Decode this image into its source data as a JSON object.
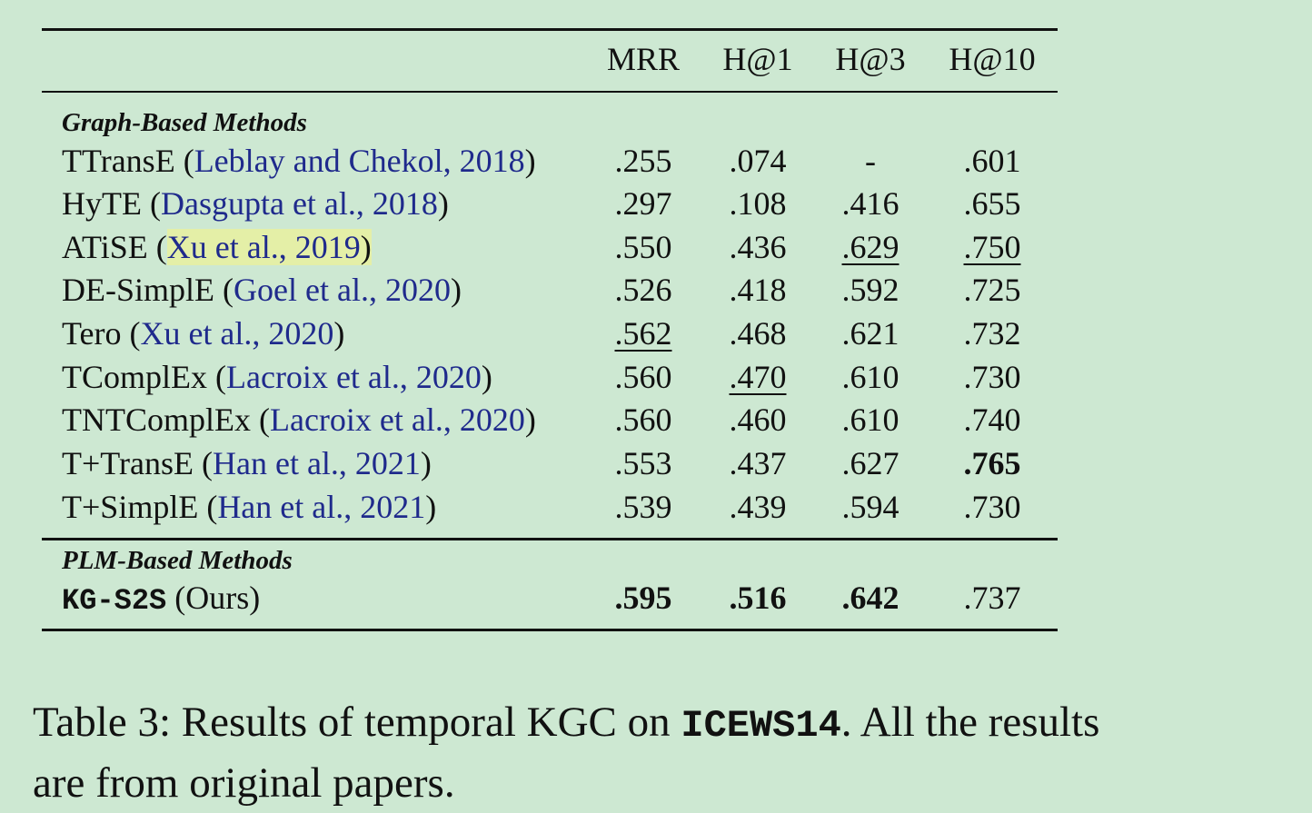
{
  "headers": [
    "MRR",
    "H@1",
    "H@3",
    "H@10"
  ],
  "group1": "Graph-Based Methods",
  "group2": "PLM-Based Methods",
  "rows": [
    {
      "method": "TTransE",
      "open": "(",
      "cite": "Leblay and Chekol, 2018",
      "close": ")",
      "v": [
        ".255",
        ".074",
        "-",
        ".601"
      ]
    },
    {
      "method": "HyTE",
      "open": "(",
      "cite": "Dasgupta et al., 2018",
      "close": ")",
      "v": [
        ".297",
        ".108",
        ".416",
        ".655"
      ]
    },
    {
      "method": "ATiSE",
      "open": "(",
      "cite": "Xu et al., 2019",
      "close": ")",
      "v": [
        ".550",
        ".436",
        ".629",
        ".750"
      ]
    },
    {
      "method": "DE-SimplE",
      "open": "(",
      "cite": "Goel et al., 2020",
      "close": ")",
      "v": [
        ".526",
        ".418",
        ".592",
        ".725"
      ]
    },
    {
      "method": "Tero",
      "open": "(",
      "cite": "Xu et al., 2020",
      "close": ")",
      "v": [
        ".562",
        ".468",
        ".621",
        ".732"
      ]
    },
    {
      "method": "TComplEx",
      "open": "(",
      "cite": "Lacroix et al., 2020",
      "close": ")",
      "v": [
        ".560",
        ".470",
        ".610",
        ".730"
      ]
    },
    {
      "method": "TNTComplEx",
      "open": "(",
      "cite": "Lacroix et al., 2020",
      "close": ")",
      "v": [
        ".560",
        ".460",
        ".610",
        ".740"
      ]
    },
    {
      "method": "T+TransE",
      "open": "(",
      "cite": "Han et al., 2021",
      "close": ")",
      "v": [
        ".553",
        ".437",
        ".627",
        ".765"
      ]
    },
    {
      "method": "T+SimplE",
      "open": "(",
      "cite": "Han et al., 2021",
      "close": ")",
      "v": [
        ".539",
        ".439",
        ".594",
        ".730"
      ]
    }
  ],
  "ours": {
    "method": "KG-S2S",
    "suffix": "(Ours)",
    "v": [
      ".595",
      ".516",
      ".642",
      ".737"
    ]
  },
  "caption": {
    "prefix": "Table 3: Results of temporal KGC on ",
    "dataset": "ICEWS14",
    "suffix": ". All the results are from original papers."
  }
}
